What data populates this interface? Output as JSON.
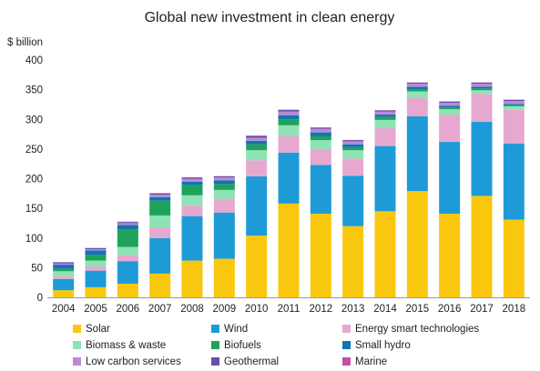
{
  "chart_data": {
    "type": "bar",
    "stacked": true,
    "title": "Global new investment in clean energy",
    "ylabel": "$ billion",
    "ylim": [
      0,
      400
    ],
    "yticks": [
      0,
      50,
      100,
      150,
      200,
      250,
      300,
      350,
      400
    ],
    "grid": false,
    "legend_position": "bottom",
    "categories": [
      "2004",
      "2005",
      "2006",
      "2007",
      "2008",
      "2009",
      "2010",
      "2011",
      "2012",
      "2013",
      "2014",
      "2015",
      "2016",
      "2017",
      "2018"
    ],
    "series": [
      {
        "name": "Solar",
        "color": "#F9C80E",
        "values": [
          12,
          17,
          23,
          40,
          62,
          65,
          104,
          158,
          141,
          120,
          145,
          179,
          141,
          171,
          131
        ]
      },
      {
        "name": "Wind",
        "color": "#1E9BD7",
        "values": [
          19,
          28,
          38,
          60,
          75,
          78,
          100,
          86,
          82,
          85,
          110,
          126,
          121,
          125,
          128
        ]
      },
      {
        "name": "Energy smart technologies",
        "color": "#E6A8CF",
        "values": [
          4,
          7,
          10,
          18,
          18,
          23,
          27,
          28,
          27,
          29,
          30,
          32,
          46,
          47,
          57
        ]
      },
      {
        "name": "Biomass & waste",
        "color": "#8EE3B5",
        "values": [
          9,
          10,
          14,
          20,
          17,
          15,
          17,
          18,
          15,
          14,
          14,
          10,
          9,
          6,
          6
        ]
      },
      {
        "name": "Biofuels",
        "color": "#1FA35B",
        "values": [
          4,
          9,
          30,
          25,
          17,
          10,
          10,
          10,
          7,
          5,
          5,
          4,
          3,
          3,
          2
        ]
      },
      {
        "name": "Small hydro",
        "color": "#0F75B0",
        "values": [
          7,
          8,
          7,
          6,
          6,
          6,
          6,
          7,
          6,
          5,
          4,
          4,
          3,
          3,
          2
        ]
      },
      {
        "name": "Low carbon services",
        "color": "#B98AD6",
        "values": [
          2,
          2,
          3,
          4,
          5,
          5,
          5,
          6,
          6,
          5,
          5,
          5,
          5,
          5,
          5
        ]
      },
      {
        "name": "Geothermal",
        "color": "#6A4FA6",
        "values": [
          2,
          2,
          2,
          2,
          2,
          2,
          3,
          3,
          2,
          2,
          2,
          2,
          2,
          2,
          2
        ]
      },
      {
        "name": "Marine",
        "color": "#C24FA8",
        "values": [
          0.3,
          0.3,
          0.5,
          0.8,
          0.5,
          0.3,
          0.5,
          0.4,
          0.4,
          0.3,
          0.4,
          0.3,
          0.4,
          0.4,
          0.4
        ]
      }
    ]
  }
}
